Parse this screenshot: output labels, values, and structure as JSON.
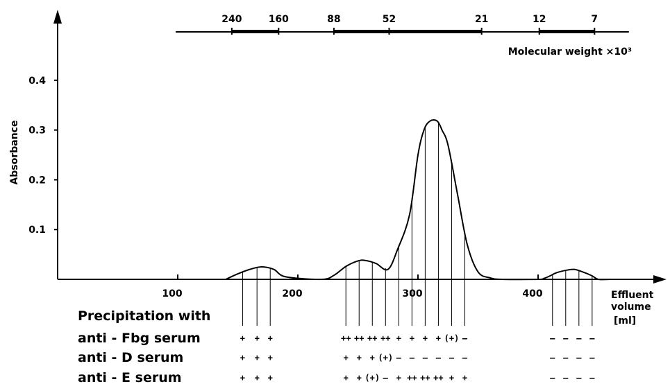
{
  "chart_data": {
    "type": "line",
    "xlabel": "Effluent volume [ml]",
    "xlabel_lines": [
      "Effluent",
      "volume",
      "[ml]"
    ],
    "ylabel": "Absorbance",
    "xlim": [
      0,
      400
    ],
    "ylim": [
      0,
      0.5
    ],
    "x_ticks": [
      100,
      200,
      300,
      400
    ],
    "y_ticks": [
      0.1,
      0.2,
      0.3,
      0.4
    ],
    "y_tick_labels": [
      "0.1",
      "0.2",
      "0.3",
      "0.4"
    ],
    "grid": false,
    "series": [
      {
        "x": [
          140,
          150,
          160,
          170,
          180,
          190,
          220,
          230,
          240,
          250,
          256,
          265,
          275,
          283,
          293,
          300,
          305,
          310,
          316,
          320,
          325,
          333,
          341,
          350,
          360,
          370,
          400,
          405,
          410,
          415,
          423,
          430,
          437,
          445,
          450,
          460
        ],
        "y": [
          0,
          0.011,
          0.02,
          0.025,
          0.02,
          0.005,
          0,
          0.008,
          0.026,
          0.037,
          0.038,
          0.032,
          0.02,
          0.06,
          0.13,
          0.25,
          0.3,
          0.318,
          0.318,
          0.3,
          0.27,
          0.17,
          0.07,
          0.015,
          0.003,
          0,
          0,
          0.002,
          0.007,
          0.013,
          0.018,
          0.02,
          0.015,
          0.007,
          0,
          0
        ]
      }
    ],
    "molecular_weight_axis": {
      "label": "Molecular weight ×10³",
      "markers": [
        {
          "label": "240",
          "x": 145
        },
        {
          "label": "160",
          "x": 184
        },
        {
          "label": "88",
          "x": 230
        },
        {
          "label": "52",
          "x": 276
        },
        {
          "label": "21",
          "x": 353
        },
        {
          "label": "12",
          "x": 401
        },
        {
          "label": "7",
          "x": 447
        }
      ],
      "bands": [
        [
          145,
          184
        ],
        [
          230,
          353
        ],
        [
          401,
          447
        ]
      ],
      "line_range": [
        100,
        460
      ]
    },
    "fraction_x": [
      154,
      166,
      177,
      240,
      251,
      262,
      273,
      284,
      295,
      306,
      317,
      328,
      339,
      412,
      423,
      434,
      445
    ],
    "precipitation": {
      "title": "Precipitation with",
      "rows": [
        {
          "label": "anti - Fbg serum",
          "values": [
            "+",
            "+",
            "+",
            "++",
            "++",
            "++",
            "++",
            "+",
            "+",
            "+",
            "+",
            "(+)",
            "–",
            "–",
            "–",
            "–",
            "–"
          ]
        },
        {
          "label": "anti - D serum",
          "values": [
            "+",
            "+",
            "+",
            "+",
            "+",
            "+",
            "(+)",
            "–",
            "–",
            "–",
            "–",
            "–",
            "–",
            "–",
            "–",
            "–",
            "–"
          ]
        },
        {
          "label": "anti - E serum",
          "values": [
            "+",
            "+",
            "+",
            "+",
            "+",
            "(+)",
            "–",
            "+",
            "++",
            "++",
            "++",
            "+",
            "+",
            "–",
            "–",
            "–",
            "–"
          ]
        }
      ]
    }
  }
}
